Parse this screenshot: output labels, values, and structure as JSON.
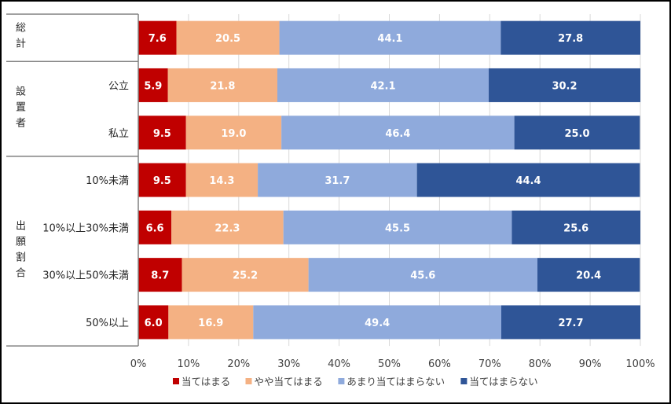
{
  "chart_data": {
    "type": "bar",
    "orientation": "horizontal",
    "stacked": true,
    "groups": [
      {
        "label": "総計",
        "categories": [
          ""
        ]
      },
      {
        "label": "設置者",
        "categories": [
          "公立",
          "私立"
        ]
      },
      {
        "label": "出願割合",
        "categories": [
          "10%未満",
          "10%以上30%未満",
          "30%以上50%未満",
          "50%以上"
        ]
      }
    ],
    "categories": [
      "総計",
      "公立",
      "私立",
      "10%未満",
      "10%以上30%未満",
      "30%以上50%未満",
      "50%以上"
    ],
    "series": [
      {
        "name": "当てはまる",
        "color": "#c00000",
        "values": [
          7.6,
          5.9,
          9.5,
          9.5,
          6.6,
          8.7,
          6.0
        ]
      },
      {
        "name": "やや当てはまる",
        "color": "#f4b183",
        "values": [
          20.5,
          21.8,
          19.0,
          14.3,
          22.3,
          25.2,
          16.9
        ]
      },
      {
        "name": "あまり当てはまらない",
        "color": "#8faadc",
        "values": [
          44.1,
          42.1,
          46.4,
          31.7,
          45.5,
          45.6,
          49.4
        ]
      },
      {
        "name": "当てはまらない",
        "color": "#2f5597",
        "values": [
          27.8,
          30.2,
          25.0,
          44.4,
          25.6,
          20.4,
          27.7
        ]
      }
    ],
    "xlim": [
      0,
      100
    ],
    "xticks": [
      "0%",
      "10%",
      "20%",
      "30%",
      "40%",
      "50%",
      "60%",
      "70%",
      "80%",
      "90%",
      "100%"
    ],
    "grid": true,
    "legend_position": "bottom"
  }
}
